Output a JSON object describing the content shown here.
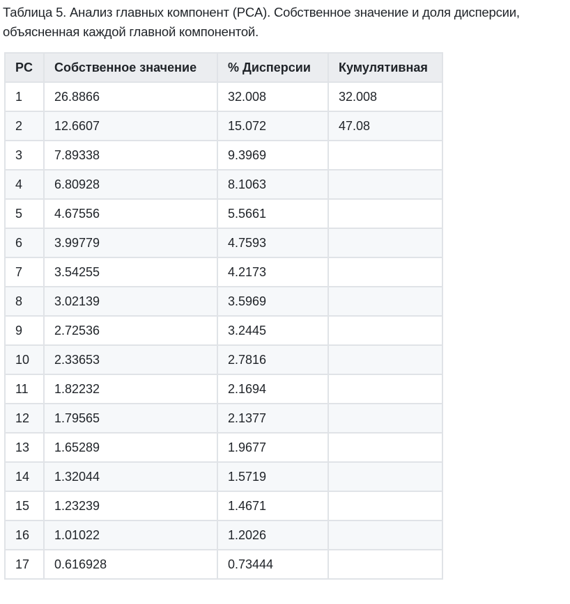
{
  "caption": "Таблица 5. Анализ главных компонент (PCA). Собственное значение и доля дисперсии, объясненная каждой главной компонентой.",
  "table": {
    "headers": [
      "PC",
      "Собственное значение",
      "% Дисперсии",
      "Кумулятивная"
    ],
    "rows": [
      [
        "1",
        "26.8866",
        "32.008",
        "32.008"
      ],
      [
        "2",
        "12.6607",
        "15.072",
        "47.08"
      ],
      [
        "3",
        "7.89338",
        "9.3969",
        ""
      ],
      [
        "4",
        "6.80928",
        "8.1063",
        ""
      ],
      [
        "5",
        "4.67556",
        "5.5661",
        ""
      ],
      [
        "6",
        "3.99779",
        "4.7593",
        ""
      ],
      [
        "7",
        "3.54255",
        "4.2173",
        ""
      ],
      [
        "8",
        "3.02139",
        "3.5969",
        ""
      ],
      [
        "9",
        "2.72536",
        "3.2445",
        ""
      ],
      [
        "10",
        "2.33653",
        "2.7816",
        ""
      ],
      [
        "11",
        "1.82232",
        "2.1694",
        ""
      ],
      [
        "12",
        "1.79565",
        "2.1377",
        ""
      ],
      [
        "13",
        "1.65289",
        "1.9677",
        ""
      ],
      [
        "14",
        "1.32044",
        "1.5719",
        ""
      ],
      [
        "15",
        "1.23239",
        "1.4671",
        ""
      ],
      [
        "16",
        "1.01022",
        "1.2026",
        ""
      ],
      [
        "17",
        "0.616928",
        "0.73444",
        ""
      ]
    ]
  }
}
